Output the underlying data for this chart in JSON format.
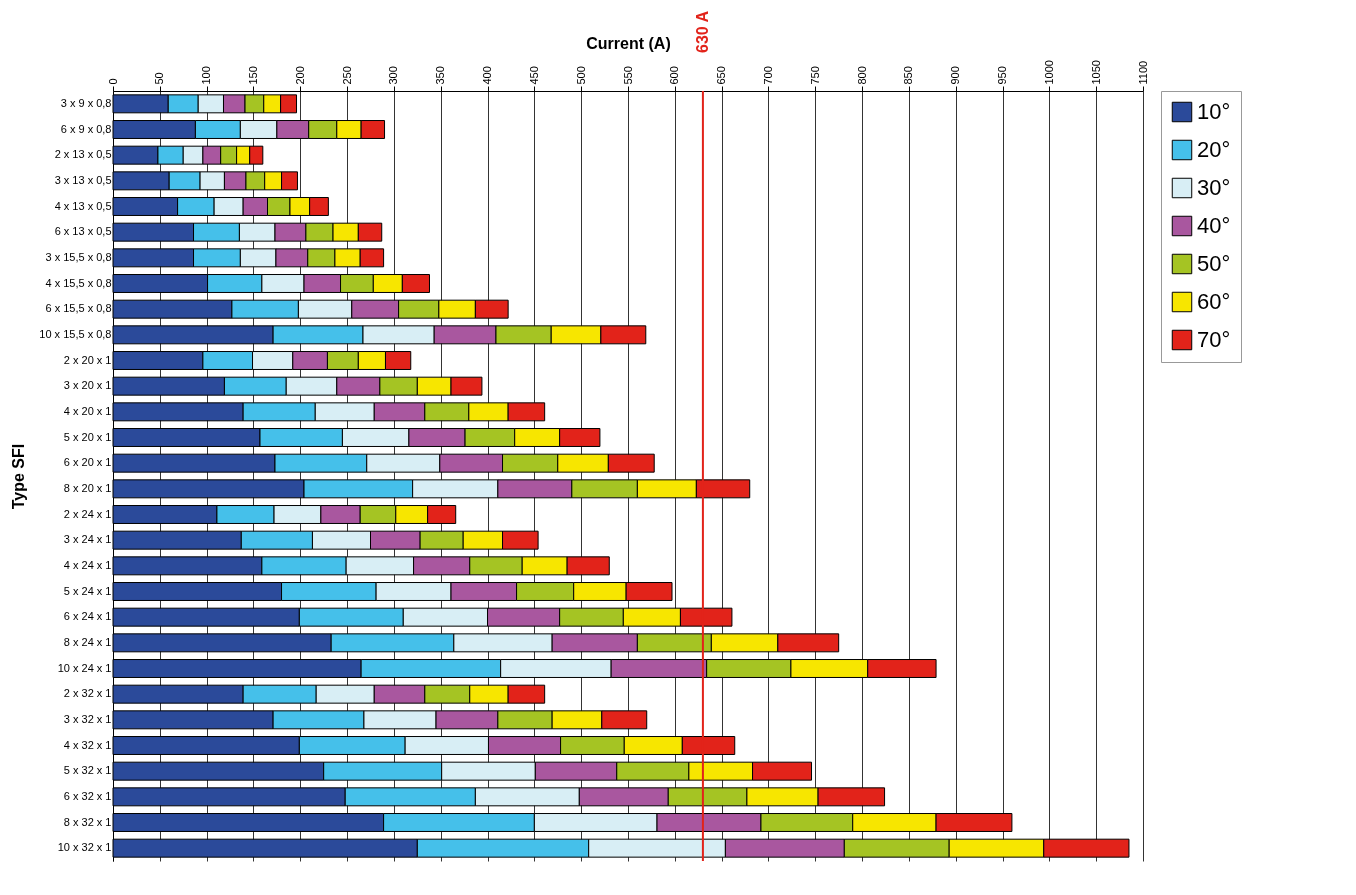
{
  "chart_data": {
    "type": "bar",
    "orientation": "horizontal",
    "stacked": true,
    "xlabel": "Current (A)",
    "ylabel": "Type SFI",
    "categories": [
      "3 x 9 x 0,8",
      "6 x 9 x 0,8",
      "2 x 13 x 0,5",
      "3 x 13 x 0,5",
      "4 x 13 x 0,5",
      "6 x 13 x 0,5",
      "3 x 15,5 x 0,8",
      "4 x 15,5 x 0,8",
      "6 x 15,5 x 0,8",
      "10 x 15,5 x 0,8",
      "2 x 20 x 1",
      "3 x 20 x 1",
      "4 x 20 x 1",
      "5 x 20 x 1",
      "6 x 20 x 1",
      "8 x 20 x 1",
      "2 x 24 x 1",
      "3 x 24 x 1",
      "4 x 24 x 1",
      "5 x 24 x 1",
      "6 x 24 x 1",
      "8 x 24 x 1",
      "10 x 24 x 1",
      "2 x 32 x 1",
      "3 x 32 x 1",
      "4 x 32 x 1",
      "5 x 32 x 1",
      "6 x 32 x 1",
      "8 x 32 x 1",
      "10 x 32 x 1"
    ],
    "series": [
      {
        "name": "10°",
        "color": "#2b4a9a",
        "values": [
          59,
          88,
          48,
          60,
          69,
          86,
          86,
          101,
          127,
          171,
          96,
          119,
          139,
          157,
          173,
          204,
          111,
          137,
          159,
          180,
          199,
          233,
          265,
          139,
          171,
          199,
          225,
          248,
          289,
          325
        ]
      },
      {
        "name": "20°",
        "color": "#45c0ea",
        "values": [
          32,
          48,
          27,
          33,
          39,
          49,
          50,
          58,
          71,
          96,
          53,
          66,
          77,
          88,
          98,
          116,
          61,
          76,
          90,
          101,
          111,
          131,
          149,
          78,
          97,
          113,
          126,
          139,
          161,
          183
        ]
      },
      {
        "name": "30°",
        "color": "#d8eef5",
        "values": [
          27,
          39,
          21,
          26,
          31,
          38,
          38,
          45,
          57,
          76,
          43,
          54,
          63,
          71,
          78,
          91,
          50,
          62,
          72,
          80,
          90,
          105,
          118,
          62,
          77,
          89,
          100,
          111,
          131,
          146
        ]
      },
      {
        "name": "40°",
        "color": "#a9579f",
        "values": [
          23,
          34,
          19,
          23,
          26,
          33,
          34,
          39,
          50,
          66,
          37,
          46,
          54,
          60,
          67,
          79,
          42,
          53,
          60,
          70,
          77,
          91,
          102,
          54,
          66,
          77,
          87,
          95,
          111,
          127
        ]
      },
      {
        "name": "50°",
        "color": "#a5c423",
        "values": [
          20,
          30,
          17,
          20,
          24,
          29,
          29,
          35,
          43,
          59,
          33,
          40,
          47,
          53,
          59,
          70,
          38,
          46,
          56,
          61,
          68,
          79,
          90,
          48,
          58,
          68,
          77,
          84,
          98,
          112
        ]
      },
      {
        "name": "60°",
        "color": "#f7e600",
        "values": [
          18,
          26,
          14,
          18,
          21,
          27,
          27,
          31,
          39,
          53,
          29,
          36,
          42,
          48,
          54,
          63,
          34,
          42,
          48,
          56,
          61,
          71,
          82,
          41,
          53,
          62,
          68,
          76,
          89,
          101
        ]
      },
      {
        "name": "70°",
        "color": "#e2231a",
        "values": [
          17,
          25,
          14,
          17,
          20,
          25,
          25,
          29,
          35,
          48,
          27,
          33,
          39,
          43,
          49,
          57,
          30,
          38,
          45,
          49,
          55,
          65,
          73,
          39,
          48,
          56,
          63,
          71,
          81,
          91
        ]
      }
    ],
    "xlim": [
      0,
      1100
    ],
    "xticks": [
      0,
      50,
      100,
      150,
      200,
      250,
      300,
      350,
      400,
      450,
      500,
      550,
      600,
      650,
      700,
      750,
      800,
      850,
      900,
      950,
      1000,
      1050,
      1100
    ],
    "grid": "x",
    "legend": "right",
    "ref_lines": [
      {
        "axis": "x",
        "value": 630,
        "label": "630 A",
        "color": "#e2231a"
      }
    ]
  }
}
